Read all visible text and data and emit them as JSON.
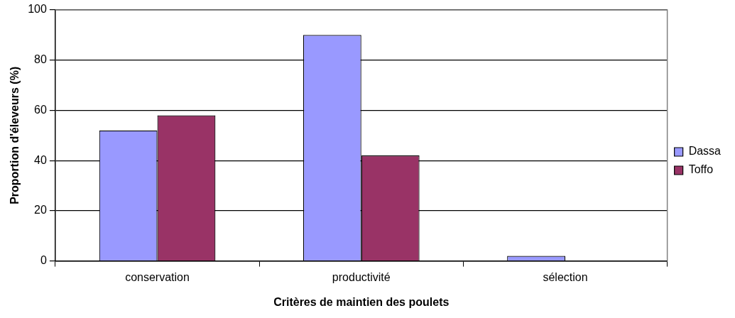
{
  "chart_data": {
    "type": "bar",
    "xlabel": "Critères de maintien des poulets",
    "ylabel": "Proportion d'éleveurs (%)",
    "categories": [
      "conservation",
      "productivité",
      "sélection"
    ],
    "series": [
      {
        "name": "Dassa",
        "color": "#9999ff",
        "values": [
          52,
          90,
          2
        ]
      },
      {
        "name": "Toffo",
        "color": "#993366",
        "values": [
          58,
          42,
          0
        ]
      }
    ],
    "ylim": [
      0,
      100
    ],
    "yticks": [
      0,
      20,
      40,
      60,
      80,
      100
    ],
    "grid": "y",
    "legend": "right"
  }
}
